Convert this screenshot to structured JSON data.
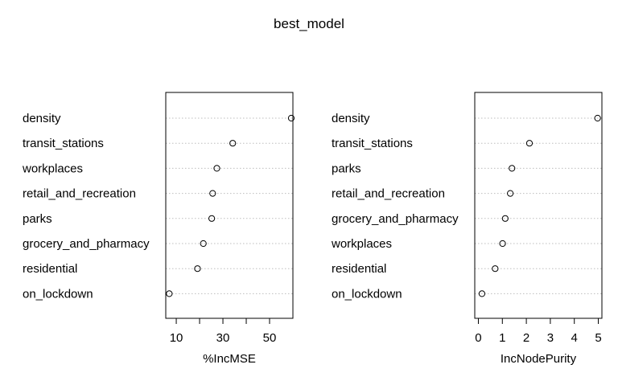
{
  "chart_data": {
    "title": "best_model",
    "panels": [
      {
        "type": "scatter",
        "subtype": "dotchart",
        "xlabel": "%IncMSE",
        "xlim": [
          5.5,
          60
        ],
        "xticks": [
          10,
          20,
          30,
          40,
          50
        ],
        "xticklabels": [
          "10",
          "",
          "30",
          "",
          "50"
        ],
        "grid": "dotted-horizontal",
        "categories": [
          "density",
          "transit_stations",
          "workplaces",
          "retail_and_recreation",
          "parks",
          "grocery_and_pharmacy",
          "residential",
          "on_lockdown"
        ],
        "values": [
          59.3,
          34.2,
          27.4,
          25.6,
          25.2,
          21.6,
          19.1,
          7.0
        ]
      },
      {
        "type": "scatter",
        "subtype": "dotchart",
        "xlabel": "IncNodePurity",
        "xlim": [
          -0.15,
          5.15
        ],
        "xticks": [
          0,
          1,
          2,
          3,
          4,
          5
        ],
        "xticklabels": [
          "0",
          "1",
          "2",
          "3",
          "4",
          "5"
        ],
        "grid": "dotted-horizontal",
        "categories": [
          "density",
          "transit_stations",
          "parks",
          "retail_and_recreation",
          "grocery_and_pharmacy",
          "workplaces",
          "residential",
          "on_lockdown"
        ],
        "values": [
          4.97,
          2.13,
          1.4,
          1.33,
          1.12,
          1.01,
          0.7,
          0.15
        ]
      }
    ]
  }
}
